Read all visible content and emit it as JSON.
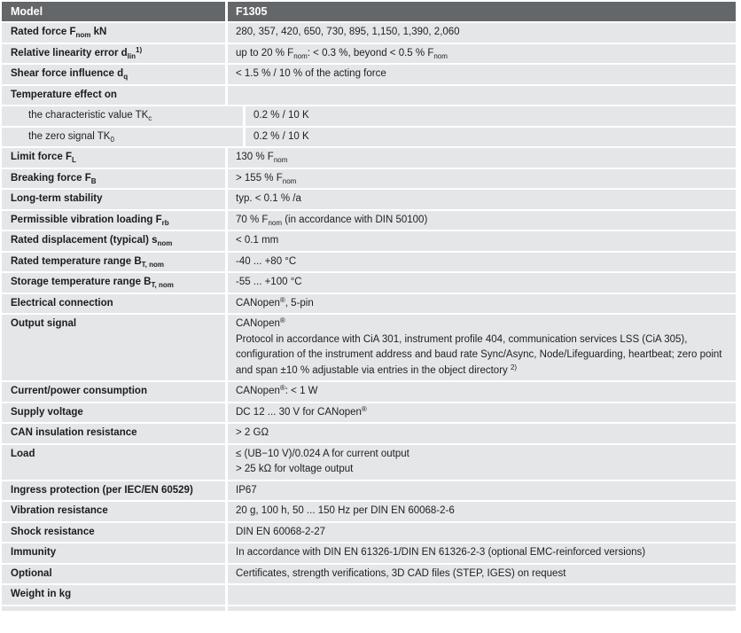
{
  "table": {
    "header": {
      "label": "Model",
      "value": "F1305"
    },
    "colors": {
      "header_bg": "#63676a",
      "header_text": "#ffffff",
      "row_bg": "#e4e6e7",
      "text": "#1b1c1e"
    },
    "rows": [
      {
        "label": "Rated force F~nom~ kN",
        "bold": true,
        "indent": false,
        "value_lines": [
          "280, 357, 420, 650, 730, 895, 1,150, 1,390, 2,060"
        ]
      },
      {
        "label": "Relative linearity error d~lin~^1)^",
        "bold": true,
        "indent": false,
        "value_lines": [
          "up to 20 % F~nom~: < 0.3 %, beyond < 0.5 % F~nom~"
        ]
      },
      {
        "label": "Shear force influence d~q~",
        "bold": true,
        "indent": false,
        "value_lines": [
          "< 1.5 % / 10 % of the acting force"
        ]
      },
      {
        "label": "Temperature effect on",
        "bold": true,
        "indent": false,
        "value_lines": []
      },
      {
        "label": "the characteristic value TK~c~",
        "bold": false,
        "indent": true,
        "value_lines": [
          "0.2 % / 10 K"
        ]
      },
      {
        "label": "the zero signal TK~0~",
        "bold": false,
        "indent": true,
        "value_lines": [
          "0.2 % / 10 K"
        ]
      },
      {
        "label": "Limit force F~L~",
        "bold": true,
        "indent": false,
        "value_lines": [
          "130 % F~nom~"
        ]
      },
      {
        "label": "Breaking force F~B~",
        "bold": true,
        "indent": false,
        "value_lines": [
          "> 155 % F~nom~"
        ]
      },
      {
        "label": "Long-term stability",
        "bold": true,
        "indent": false,
        "value_lines": [
          "typ. < 0.1 % /a"
        ]
      },
      {
        "label": "Permissible vibration loading F~rb~",
        "bold": true,
        "indent": false,
        "value_lines": [
          "70 % F~nom~ (in accordance with DIN 50100)"
        ]
      },
      {
        "label": "Rated displacement (typical) s~nom~",
        "bold": true,
        "indent": false,
        "value_lines": [
          "< 0.1 mm"
        ]
      },
      {
        "label": "Rated temperature range B~T, nom~",
        "bold": true,
        "indent": false,
        "value_lines": [
          "-40 ... +80 °C"
        ]
      },
      {
        "label": "Storage temperature range B~T, nom~",
        "bold": true,
        "indent": false,
        "value_lines": [
          "-55 ... +100 °C"
        ]
      },
      {
        "label": "Electrical connection",
        "bold": true,
        "indent": false,
        "value_lines": [
          "CANopen^®^, 5-pin"
        ]
      },
      {
        "label": "Output signal",
        "bold": true,
        "indent": false,
        "value_lines": [
          "CANopen^®^",
          "Protocol in accordance with CiA 301, instrument profile 404, communication services LSS (CiA 305), configuration of the instrument address and baud rate Sync/Async, Node/Lifeguarding, heartbeat; zero point and span ±10 % adjustable via entries in the object directory ^2)^"
        ]
      },
      {
        "label": "Current/power consumption",
        "bold": true,
        "indent": false,
        "value_lines": [
          "CANopen^®^: < 1 W"
        ]
      },
      {
        "label": "Supply voltage",
        "bold": true,
        "indent": false,
        "value_lines": [
          "DC 12 ... 30 V for CANopen^®^"
        ]
      },
      {
        "label": "CAN insulation resistance",
        "bold": true,
        "indent": false,
        "value_lines": [
          "> 2 GΩ"
        ]
      },
      {
        "label": "Load",
        "bold": true,
        "indent": false,
        "value_lines": [
          "≤ (UB−10 V)/0.024 A for current output",
          "> 25 kΩ for voltage output"
        ]
      },
      {
        "label": "Ingress protection (per IEC/EN 60529)",
        "bold": true,
        "indent": false,
        "value_lines": [
          "IP67"
        ]
      },
      {
        "label": "Vibration resistance",
        "bold": true,
        "indent": false,
        "value_lines": [
          "20 g, 100 h, 50 ... 150 Hz per DIN EN 60068-2-6"
        ]
      },
      {
        "label": "Shock resistance",
        "bold": true,
        "indent": false,
        "value_lines": [
          "DIN EN 60068-2-27"
        ]
      },
      {
        "label": "Immunity",
        "bold": true,
        "indent": false,
        "value_lines": [
          "In accordance with DIN EN 61326-1/DIN EN 61326-2-3 (optional EMC-reinforced versions)"
        ]
      },
      {
        "label": "Optional",
        "bold": true,
        "indent": false,
        "value_lines": [
          "Certificates, strength verifications, 3D CAD files (STEP, IGES) on request"
        ]
      },
      {
        "label": "Weight in kg",
        "bold": true,
        "indent": false,
        "value_lines": []
      }
    ]
  }
}
